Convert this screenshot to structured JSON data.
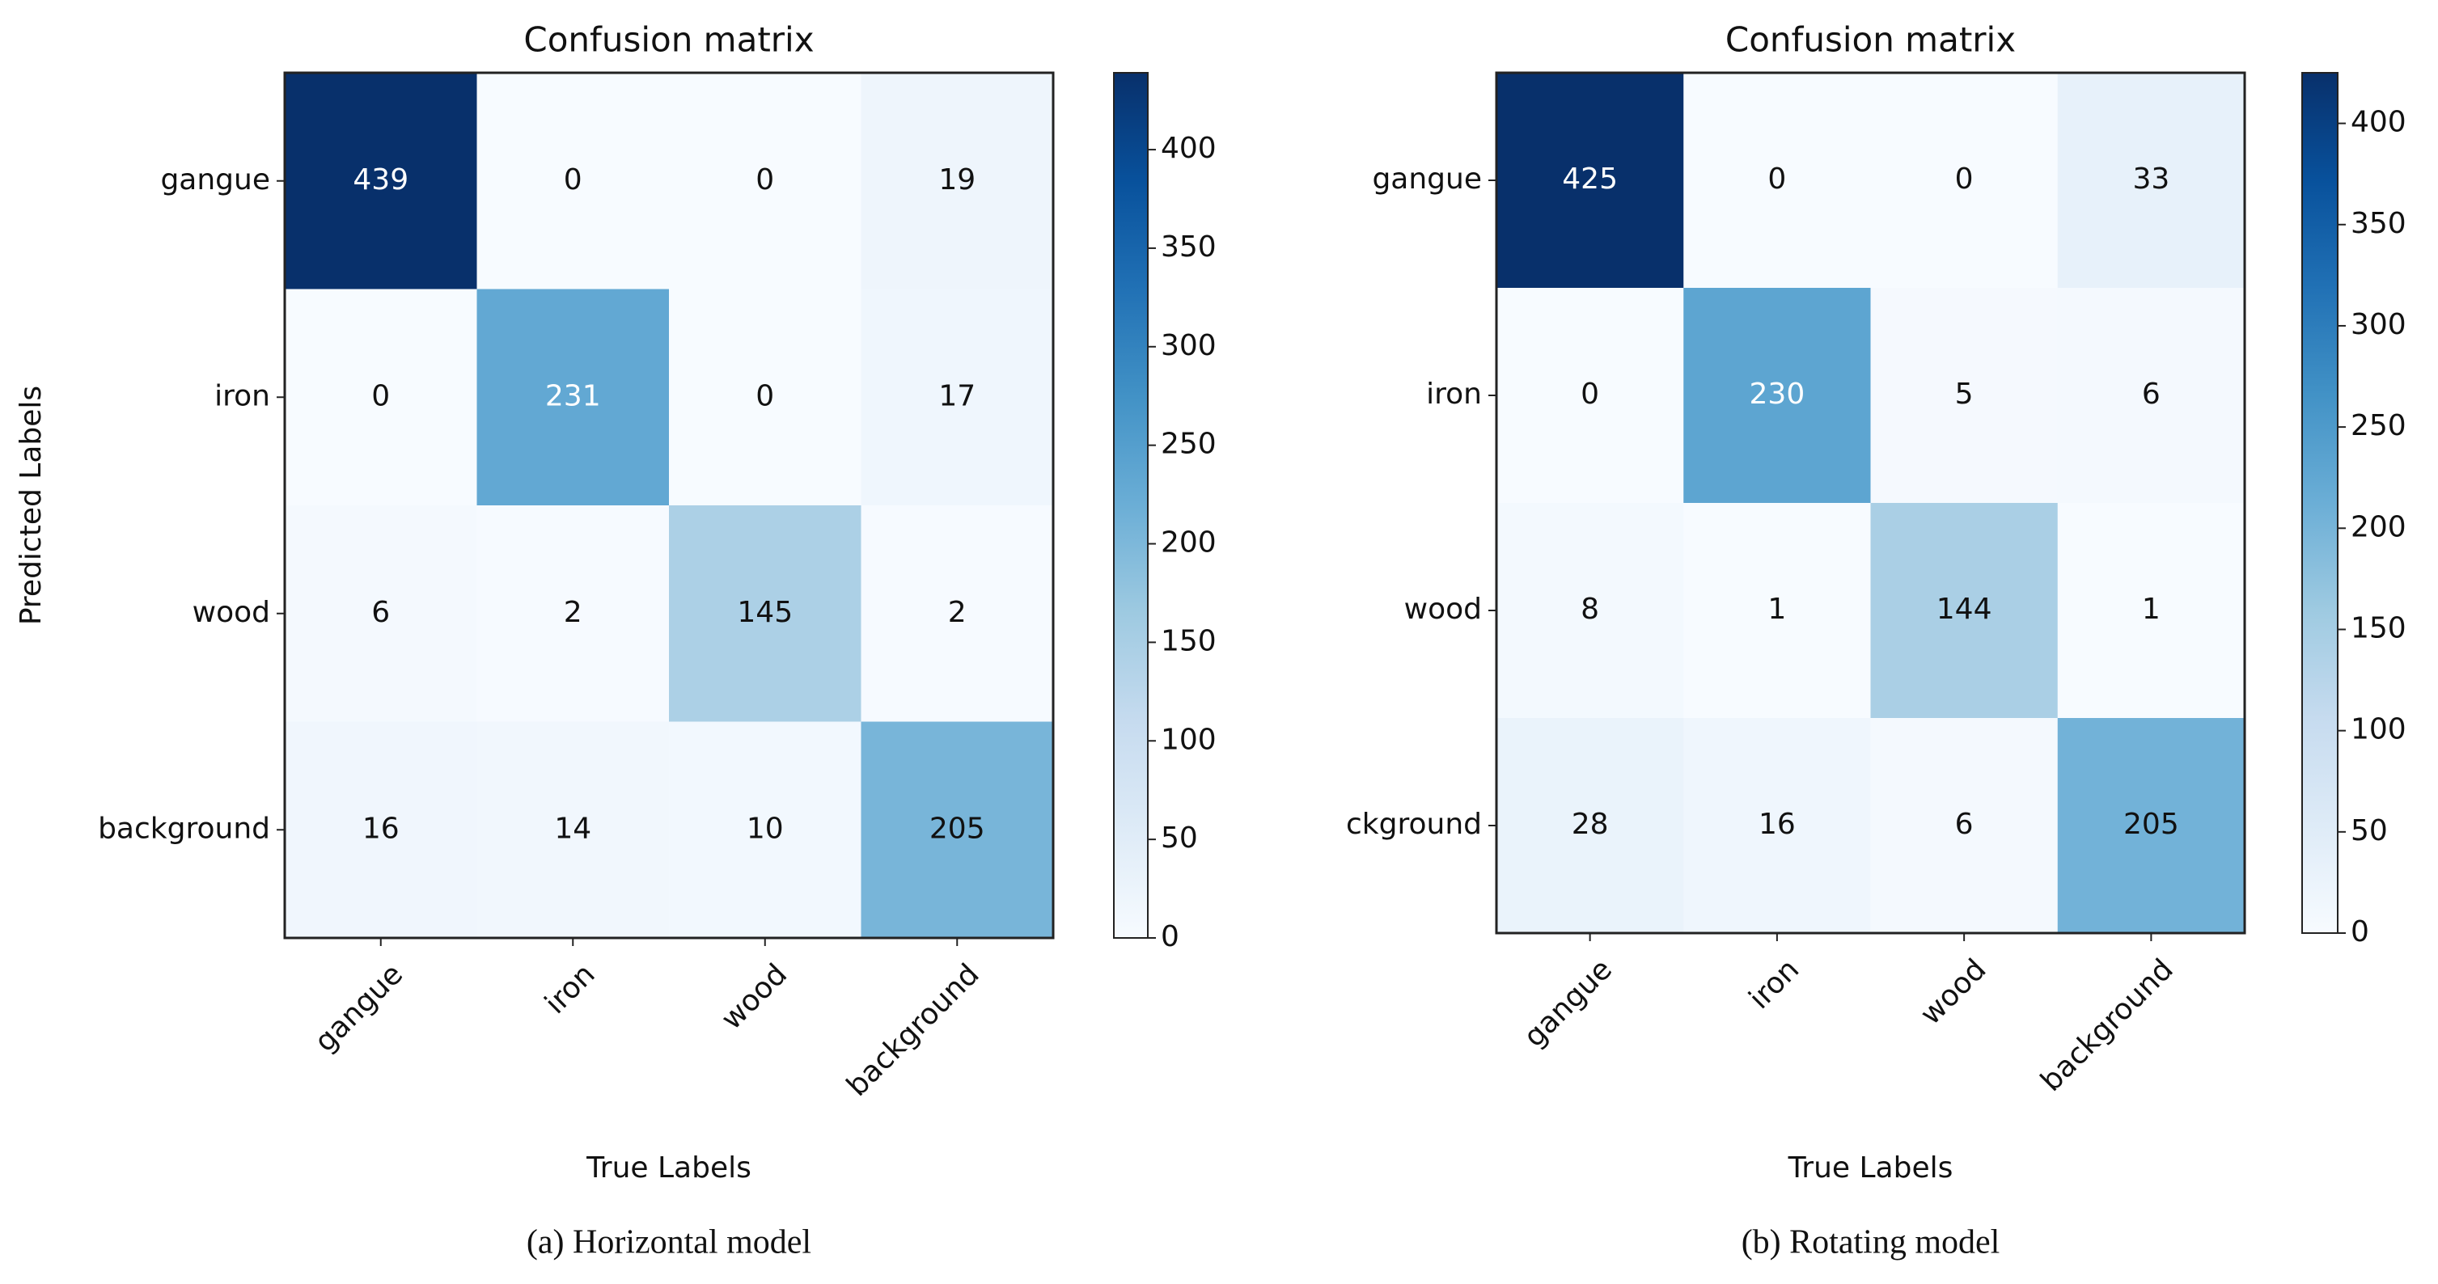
{
  "chart_data": [
    {
      "type": "heatmap",
      "title": "Confusion matrix",
      "x_label": "True Labels",
      "y_label": "Predicted Labels",
      "caption": "(a) Horizontal model",
      "colormap": "Blues",
      "x_categories": [
        "gangue",
        "iron",
        "wood",
        "background"
      ],
      "y_categories": [
        "gangue",
        "iron",
        "wood",
        "background"
      ],
      "values": [
        [
          439,
          0,
          0,
          19
        ],
        [
          0,
          231,
          0,
          17
        ],
        [
          6,
          2,
          145,
          2
        ],
        [
          16,
          14,
          10,
          205
        ]
      ],
      "zlim": [
        0,
        439
      ],
      "zticks": [
        0,
        50,
        100,
        150,
        200,
        250,
        300,
        350,
        400
      ]
    },
    {
      "type": "heatmap",
      "title": "Confusion matrix",
      "x_label": "True Labels",
      "caption": "(b) Rotating model",
      "colormap": "Blues",
      "x_categories": [
        "gangue",
        "iron",
        "wood",
        "background"
      ],
      "y_categories": [
        "gangue",
        "iron",
        "wood",
        "ckground"
      ],
      "values": [
        [
          425,
          0,
          0,
          33
        ],
        [
          0,
          230,
          5,
          6
        ],
        [
          8,
          1,
          144,
          1
        ],
        [
          28,
          16,
          6,
          205
        ]
      ],
      "zlim": [
        0,
        425
      ],
      "zticks": [
        0,
        50,
        100,
        150,
        200,
        250,
        300,
        350,
        400
      ]
    }
  ]
}
